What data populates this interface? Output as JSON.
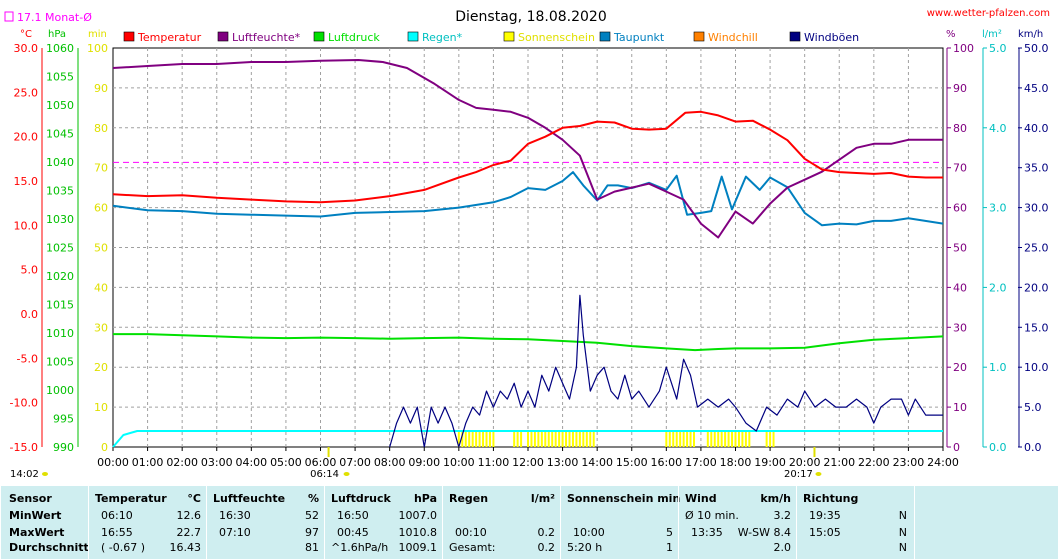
{
  "chart_data": {
    "type": "line",
    "title": "Dienstag, 18.08.2020",
    "site": "www.wetter-pfalzen.com",
    "month_avg_label": "17.1 Monat-Ø",
    "axis_units": {
      "temp": "°C",
      "pressure": "hPa",
      "min": "min",
      "pct": "%",
      "rain": "l/m²",
      "wind": "km/h"
    },
    "temp_ticks": [
      "30.0",
      "25.0",
      "20.0",
      "15.0",
      "10.0",
      "5.0",
      "0.0",
      "-5.0",
      "-10.0",
      "-15.0"
    ],
    "pressure_ticks": [
      "1060",
      "1055",
      "1050",
      "1045",
      "1040",
      "1035",
      "1030",
      "1025",
      "1020",
      "1015",
      "1010",
      "1005",
      "1000",
      "995",
      "990"
    ],
    "min_ticks": [
      "100",
      "90",
      "80",
      "70",
      "60",
      "50",
      "40",
      "30",
      "20",
      "10",
      "0"
    ],
    "pct_ticks": [
      "100",
      "90",
      "80",
      "70",
      "60",
      "50",
      "40",
      "30",
      "20",
      "10",
      "0"
    ],
    "rain_ticks": [
      "5.0",
      "4.0",
      "3.0",
      "2.0",
      "1.0",
      "0.0"
    ],
    "wind_ticks": [
      "50.0",
      "45.0",
      "40.0",
      "35.0",
      "30.0",
      "25.0",
      "20.0",
      "15.0",
      "10.0",
      "5.0",
      "0.0"
    ],
    "x_ticks": [
      "00:00",
      "01:00",
      "02:00",
      "03:00",
      "04:00",
      "05:00",
      "06:00",
      "07:00",
      "08:00",
      "09:00",
      "10:00",
      "11:00",
      "12:00",
      "13:00",
      "14:00",
      "15:00",
      "16:00",
      "17:00",
      "18:00",
      "19:00",
      "20:00",
      "21:00",
      "22:00",
      "23:00",
      "24:00"
    ],
    "sunrise": "06:14",
    "sunset": "20:17",
    "time_left": "14:02",
    "month_avg_temp": 17.1,
    "legend": [
      {
        "name": "Temperatur",
        "color": "#ff0000"
      },
      {
        "name": "Luftfeuchte*",
        "color": "#800080"
      },
      {
        "name": "Luftdruck",
        "color": "#00e000"
      },
      {
        "name": "Regen*",
        "color": "#00ffff"
      },
      {
        "name": "Sonnenschein",
        "color": "#ffff00"
      },
      {
        "name": "Taupunkt",
        "color": "#0080c0"
      },
      {
        "name": "Windchill",
        "color": "#ff8000"
      },
      {
        "name": "Windböen",
        "color": "#000080"
      }
    ],
    "series": {
      "temperature": [
        [
          0,
          13.5
        ],
        [
          1,
          13.3
        ],
        [
          2,
          13.4
        ],
        [
          3,
          13.1
        ],
        [
          4,
          12.9
        ],
        [
          5,
          12.7
        ],
        [
          6,
          12.6
        ],
        [
          7,
          12.8
        ],
        [
          8,
          13.3
        ],
        [
          9,
          14.0
        ],
        [
          10,
          15.4
        ],
        [
          10.5,
          16.0
        ],
        [
          11,
          16.8
        ],
        [
          11.5,
          17.3
        ],
        [
          12,
          19.2
        ],
        [
          12.5,
          20.0
        ],
        [
          13,
          21.0
        ],
        [
          13.5,
          21.2
        ],
        [
          14,
          21.7
        ],
        [
          14.5,
          21.6
        ],
        [
          15,
          20.9
        ],
        [
          15.5,
          20.8
        ],
        [
          16,
          20.9
        ],
        [
          16.55,
          22.7
        ],
        [
          17,
          22.8
        ],
        [
          17.5,
          22.4
        ],
        [
          18,
          21.7
        ],
        [
          18.5,
          21.8
        ],
        [
          19,
          20.8
        ],
        [
          19.5,
          19.6
        ],
        [
          20,
          17.5
        ],
        [
          20.5,
          16.3
        ],
        [
          21,
          16.0
        ],
        [
          21.5,
          15.9
        ],
        [
          22,
          15.8
        ],
        [
          22.5,
          15.9
        ],
        [
          23,
          15.5
        ],
        [
          23.5,
          15.4
        ],
        [
          24,
          15.4
        ]
      ],
      "humidity": [
        [
          0,
          95
        ],
        [
          1,
          95.5
        ],
        [
          2,
          96
        ],
        [
          3,
          96
        ],
        [
          4,
          96.5
        ],
        [
          5,
          96.5
        ],
        [
          6,
          96.8
        ],
        [
          7.1,
          97
        ],
        [
          7.8,
          96.5
        ],
        [
          8.5,
          95
        ],
        [
          9.3,
          91
        ],
        [
          10,
          87
        ],
        [
          10.5,
          85
        ],
        [
          11,
          84.5
        ],
        [
          11.5,
          84
        ],
        [
          12,
          82.5
        ],
        [
          12.5,
          80
        ],
        [
          13,
          77
        ],
        [
          13.5,
          73
        ],
        [
          14,
          62
        ],
        [
          14.5,
          64
        ],
        [
          15,
          65
        ],
        [
          15.5,
          66
        ],
        [
          16,
          64
        ],
        [
          16.5,
          62
        ],
        [
          17,
          56
        ],
        [
          17.5,
          52.5
        ],
        [
          18,
          59
        ],
        [
          18.5,
          56
        ],
        [
          19,
          61
        ],
        [
          19.5,
          65
        ],
        [
          20,
          67
        ],
        [
          20.5,
          69
        ],
        [
          21,
          72
        ],
        [
          21.5,
          75
        ],
        [
          22,
          76
        ],
        [
          22.5,
          76
        ],
        [
          23,
          77
        ],
        [
          23.5,
          77
        ],
        [
          24,
          77
        ]
      ],
      "pressure": [
        [
          0,
          1009.8
        ],
        [
          1,
          1009.8
        ],
        [
          2,
          1009.6
        ],
        [
          3,
          1009.4
        ],
        [
          4,
          1009.2
        ],
        [
          5,
          1009.1
        ],
        [
          6,
          1009.2
        ],
        [
          7,
          1009.1
        ],
        [
          8,
          1009.0
        ],
        [
          9,
          1009.1
        ],
        [
          10,
          1009.2
        ],
        [
          11,
          1009.0
        ],
        [
          12,
          1008.9
        ],
        [
          13,
          1008.6
        ],
        [
          14,
          1008.3
        ],
        [
          15,
          1007.7
        ],
        [
          16,
          1007.3
        ],
        [
          16.83,
          1007.0
        ],
        [
          17.5,
          1007.2
        ],
        [
          18,
          1007.3
        ],
        [
          19,
          1007.3
        ],
        [
          20,
          1007.4
        ],
        [
          21,
          1008.2
        ],
        [
          22,
          1008.8
        ],
        [
          23,
          1009.1
        ],
        [
          24,
          1009.4
        ]
      ],
      "dewpoint": [
        [
          0,
          12.2
        ],
        [
          1,
          11.7
        ],
        [
          2,
          11.6
        ],
        [
          3,
          11.3
        ],
        [
          4,
          11.2
        ],
        [
          5,
          11.1
        ],
        [
          6,
          11.0
        ],
        [
          7,
          11.4
        ],
        [
          8,
          11.5
        ],
        [
          9,
          11.6
        ],
        [
          10,
          12.0
        ],
        [
          11,
          12.6
        ],
        [
          11.5,
          13.2
        ],
        [
          12,
          14.2
        ],
        [
          12.5,
          14.0
        ],
        [
          13,
          15.0
        ],
        [
          13.3,
          16.0
        ],
        [
          13.6,
          14.5
        ],
        [
          14,
          12.8
        ],
        [
          14.3,
          14.5
        ],
        [
          14.6,
          14.5
        ],
        [
          15,
          14.2
        ],
        [
          15.5,
          14.8
        ],
        [
          16,
          14.0
        ],
        [
          16.3,
          15.6
        ],
        [
          16.6,
          11.2
        ],
        [
          17,
          11.4
        ],
        [
          17.3,
          11.6
        ],
        [
          17.6,
          15.5
        ],
        [
          17.9,
          11.8
        ],
        [
          18.3,
          15.5
        ],
        [
          18.7,
          14.0
        ],
        [
          19,
          15.4
        ],
        [
          19.5,
          14.3
        ],
        [
          20,
          11.4
        ],
        [
          20.5,
          10.0
        ],
        [
          21,
          10.2
        ],
        [
          21.5,
          10.1
        ],
        [
          22,
          10.5
        ],
        [
          22.5,
          10.5
        ],
        [
          23,
          10.8
        ],
        [
          24,
          10.2
        ]
      ],
      "wind_gusts": [
        [
          8,
          0
        ],
        [
          8.2,
          3
        ],
        [
          8.4,
          5
        ],
        [
          8.6,
          3
        ],
        [
          8.8,
          5
        ],
        [
          9,
          0
        ],
        [
          9.2,
          5
        ],
        [
          9.4,
          3
        ],
        [
          9.6,
          5
        ],
        [
          9.8,
          3
        ],
        [
          10,
          0
        ],
        [
          10.2,
          3
        ],
        [
          10.4,
          5
        ],
        [
          10.6,
          4
        ],
        [
          10.8,
          7
        ],
        [
          11,
          5
        ],
        [
          11.2,
          7
        ],
        [
          11.4,
          6
        ],
        [
          11.6,
          8
        ],
        [
          11.8,
          5
        ],
        [
          12,
          7
        ],
        [
          12.2,
          5
        ],
        [
          12.4,
          9
        ],
        [
          12.6,
          7
        ],
        [
          12.8,
          10
        ],
        [
          13,
          8
        ],
        [
          13.2,
          6
        ],
        [
          13.4,
          10
        ],
        [
          13.5,
          19
        ],
        [
          13.6,
          14
        ],
        [
          13.8,
          7
        ],
        [
          14,
          9
        ],
        [
          14.2,
          10
        ],
        [
          14.4,
          7
        ],
        [
          14.6,
          6
        ],
        [
          14.8,
          9
        ],
        [
          15,
          6
        ],
        [
          15.2,
          7
        ],
        [
          15.5,
          5
        ],
        [
          15.8,
          7
        ],
        [
          16,
          10
        ],
        [
          16.3,
          6
        ],
        [
          16.5,
          11
        ],
        [
          16.7,
          9
        ],
        [
          16.9,
          5
        ],
        [
          17.2,
          6
        ],
        [
          17.5,
          5
        ],
        [
          17.8,
          6
        ],
        [
          18,
          5
        ],
        [
          18.3,
          3
        ],
        [
          18.6,
          2
        ],
        [
          18.9,
          5
        ],
        [
          19.2,
          4
        ],
        [
          19.5,
          6
        ],
        [
          19.8,
          5
        ],
        [
          20,
          7
        ],
        [
          20.3,
          5
        ],
        [
          20.6,
          6
        ],
        [
          20.9,
          5
        ],
        [
          21.2,
          5
        ],
        [
          21.5,
          6
        ],
        [
          21.8,
          5
        ],
        [
          22,
          3
        ],
        [
          22.2,
          5
        ],
        [
          22.5,
          6
        ],
        [
          22.8,
          6
        ],
        [
          23,
          4
        ],
        [
          23.2,
          6
        ],
        [
          23.5,
          4
        ],
        [
          24,
          4
        ]
      ],
      "rain": [
        [
          0,
          0
        ],
        [
          0.3,
          0.15
        ],
        [
          0.7,
          0.2
        ],
        [
          1.2,
          0.2
        ],
        [
          24,
          0.2
        ]
      ],
      "sunshine_intervals": [
        [
          10,
          11
        ],
        [
          11.6,
          11.8
        ],
        [
          12,
          13.9
        ],
        [
          16,
          16.8
        ],
        [
          17.2,
          17.6
        ],
        [
          17.7,
          18.4
        ],
        [
          18.9,
          19.1
        ]
      ]
    }
  },
  "stats": {
    "headers": {
      "sensor": "Sensor",
      "temp": "Temperatur",
      "temp_unit": "°C",
      "hum": "Luftfeuchte",
      "hum_unit": "%",
      "press": "Luftdruck",
      "press_unit": "hPa",
      "rain": "Regen",
      "rain_unit": "l/m²",
      "sun": "Sonnenschein min",
      "wind": "Wind",
      "wind_unit": "km/h",
      "dir": "Richtung"
    },
    "min": {
      "label": "MinWert",
      "temp_time": "06:10",
      "temp_val": "12.6",
      "hum_time": "16:30",
      "hum_val": "52",
      "press_time": "16:50",
      "press_val": "1007.0",
      "wind_time": "Ø 10 min.",
      "wind_val": "3.2",
      "dir_time": "19:35",
      "dir_val": "N"
    },
    "max": {
      "label": "MaxWert",
      "temp_time": "16:55",
      "temp_val": "22.7",
      "hum_time": "07:10",
      "hum_val": "97",
      "press_time": "00:45",
      "press_val": "1010.8",
      "rain_time": "00:10",
      "rain_val": "0.2",
      "sun_time": "10:00",
      "sun_val": "5",
      "wind_time": "13:35",
      "wind_val": "W-SW 8.4",
      "dir_time": "15:05",
      "dir_val": "N"
    },
    "avg": {
      "label": "Durchschnitt",
      "temp_time": "( -0.67 )",
      "temp_val": "16.43",
      "hum_val": "81",
      "press_time": "^1.6hPa/h",
      "press_val": "1009.1",
      "rain_time": "Gesamt:",
      "rain_val": "0.2",
      "sun_time": "5:20 h",
      "sun_val": "1",
      "wind_val": "2.0",
      "dir_val": "N"
    }
  }
}
